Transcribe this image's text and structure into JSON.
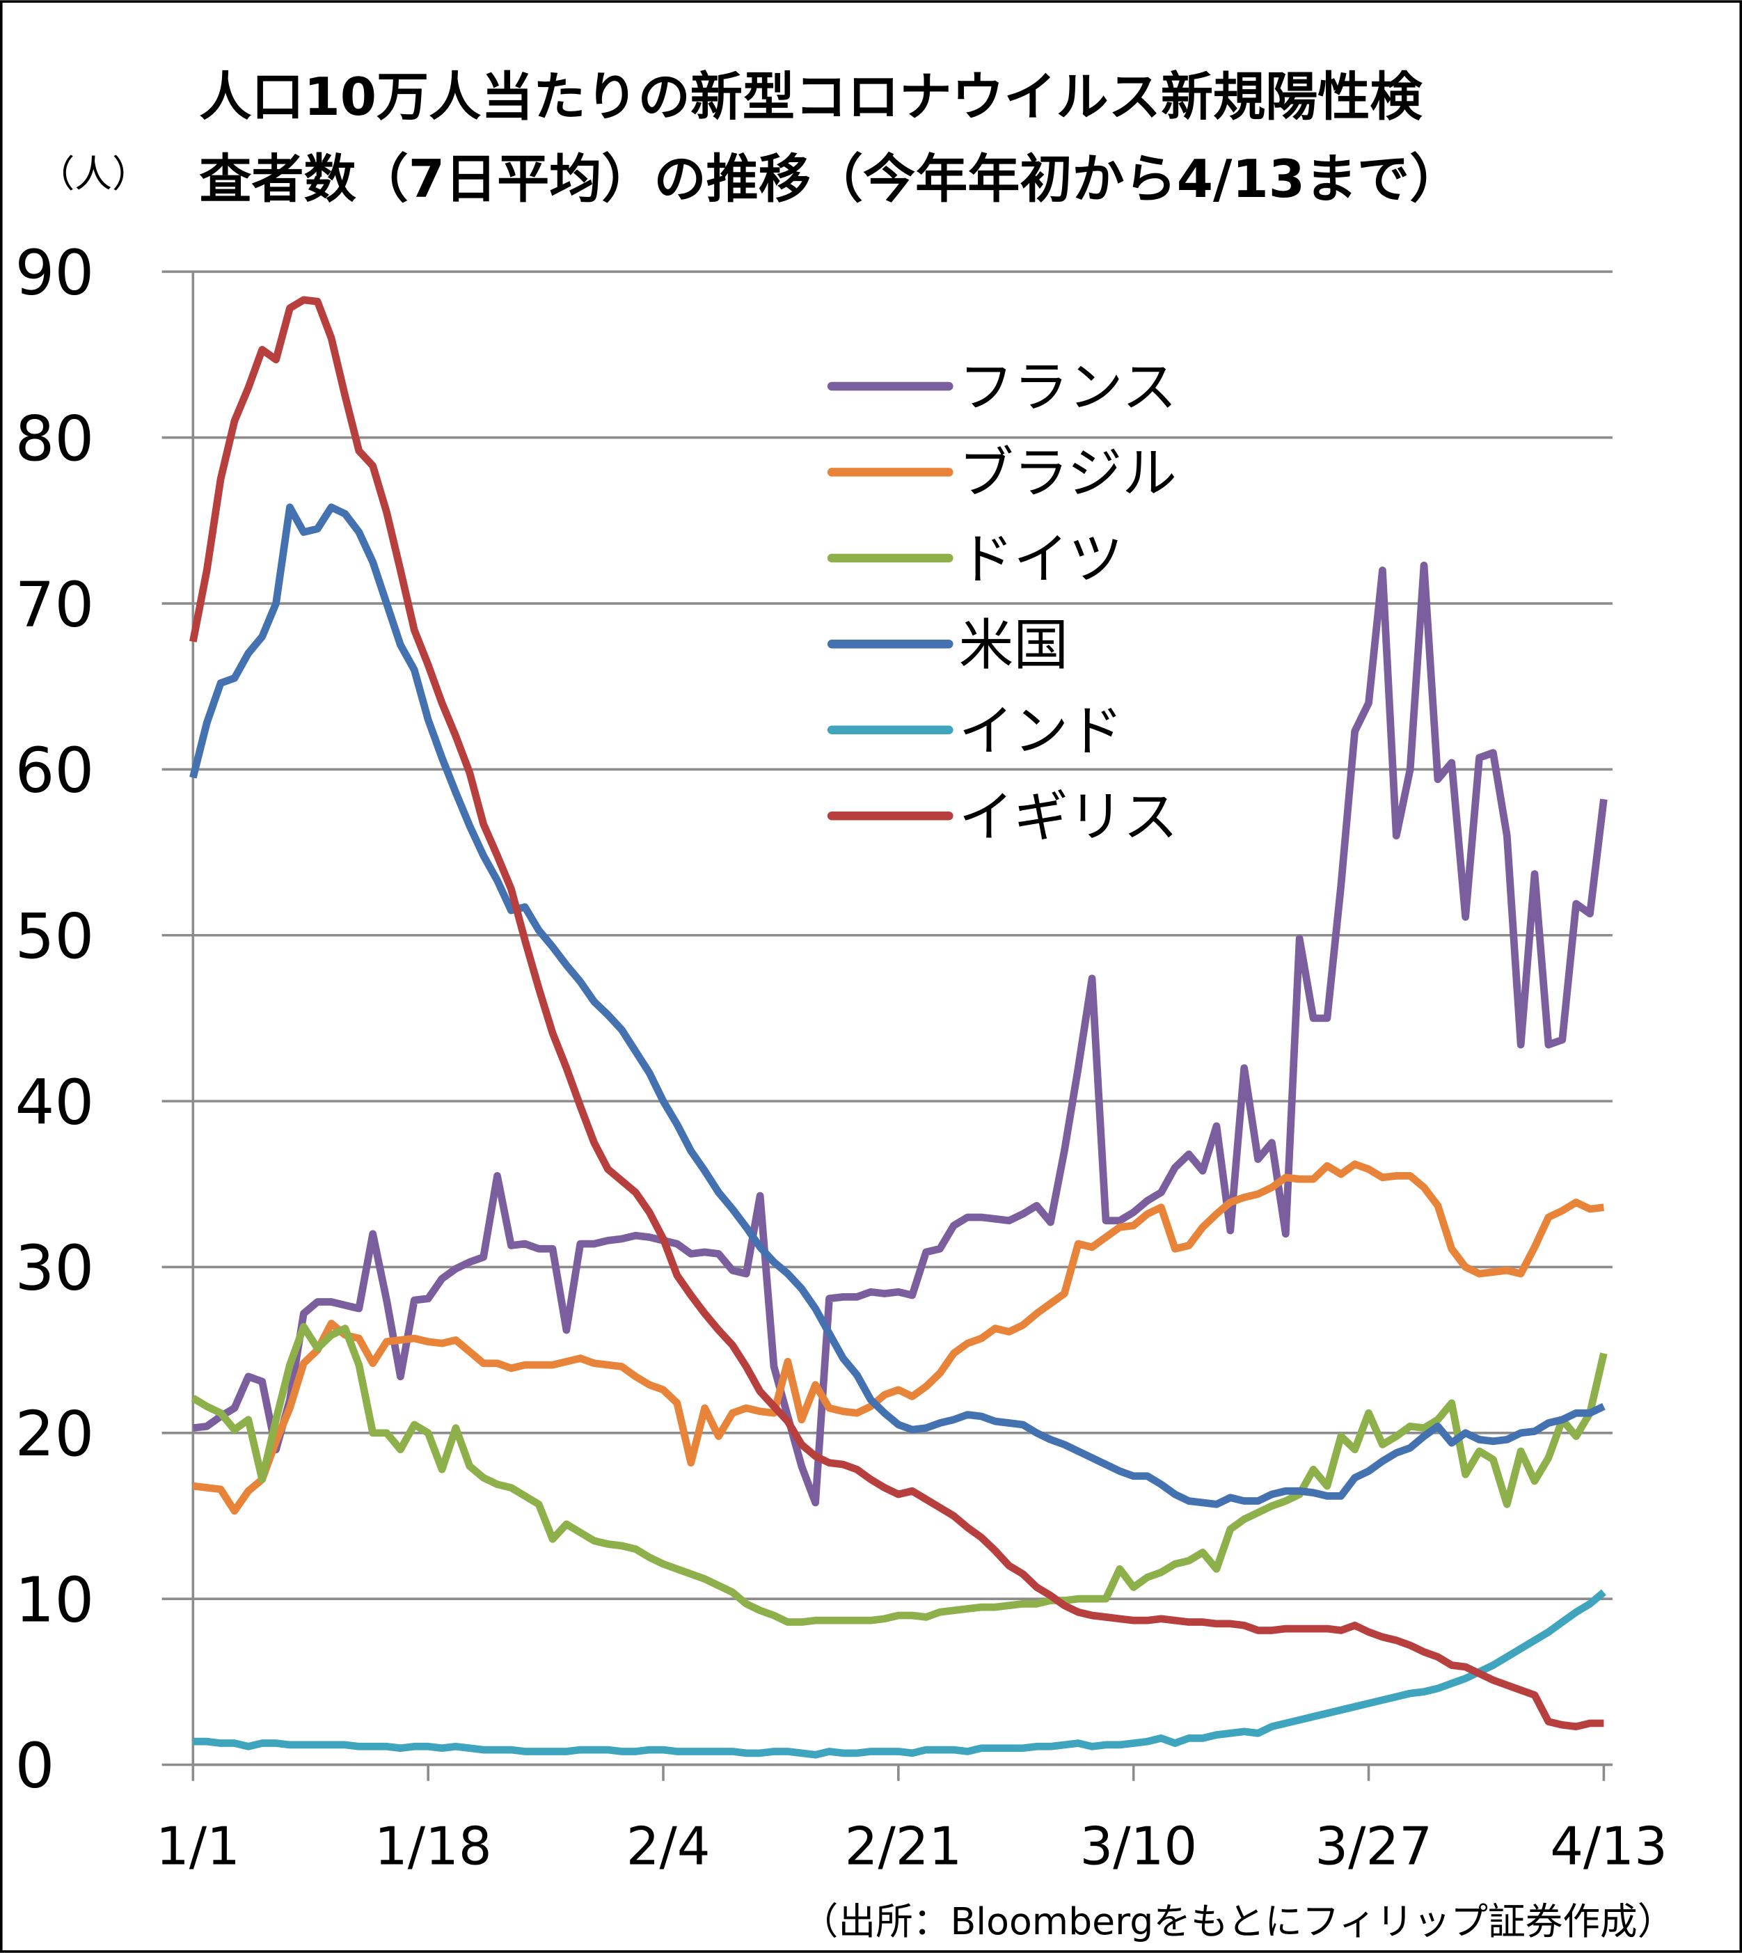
{
  "chart_data": {
    "type": "line",
    "title": [
      "人口10万人当たりの新型コロナウイルス新規陽性検",
      "査者数（7日平均）の推移（今年年初から4/13まで）"
    ],
    "y_label": "（人）",
    "source": "（出所：Bloombergをもとにフィリップ証券作成）",
    "categories": [
      "1/1",
      null,
      null,
      null,
      null,
      null,
      null,
      null,
      null,
      null,
      null,
      null,
      null,
      null,
      null,
      null,
      null,
      "1/18",
      null,
      null,
      null,
      null,
      null,
      null,
      null,
      null,
      null,
      null,
      null,
      null,
      null,
      null,
      null,
      null,
      "2/4",
      null,
      null,
      null,
      null,
      null,
      null,
      null,
      null,
      null,
      null,
      null,
      null,
      null,
      null,
      null,
      null,
      "2/21",
      null,
      null,
      null,
      null,
      null,
      null,
      null,
      null,
      null,
      null,
      null,
      null,
      null,
      null,
      null,
      null,
      "3/10",
      null,
      null,
      null,
      null,
      null,
      null,
      null,
      null,
      null,
      null,
      null,
      null,
      null,
      null,
      null,
      null,
      "3/27",
      null,
      null,
      null,
      null,
      null,
      null,
      null,
      null,
      null,
      null,
      null,
      null,
      null,
      null,
      null,
      null,
      "4/13"
    ],
    "ylim": [
      0,
      90
    ],
    "yticks": [
      0,
      10,
      20,
      30,
      40,
      50,
      60,
      70,
      80,
      90
    ],
    "grid": true,
    "series": [
      {
        "name": "フランス",
        "color": "#7b5e9e",
        "values": [
          20.3,
          20.4,
          21,
          21.5,
          23.4,
          23.1,
          19,
          22,
          27.2,
          27.9,
          27.9,
          27.7,
          27.5,
          32,
          28,
          23.4,
          28,
          28.1,
          29.3,
          29.9,
          30.3,
          30.6,
          35.5,
          31.3,
          31.4,
          31.1,
          31.1,
          26.2,
          31.4,
          31.4,
          31.6,
          31.7,
          31.9,
          31.8,
          31.6,
          31.4,
          30.8,
          30.9,
          30.8,
          29.8,
          29.6,
          34.3,
          24,
          21,
          18,
          15.8,
          28.1,
          28.2,
          28.2,
          28.5,
          28.4,
          28.5,
          28.3,
          30.9,
          31.1,
          32.5,
          33,
          33,
          32.9,
          32.8,
          33.2,
          33.7,
          32.7,
          37,
          42,
          47.4,
          32.8,
          32.8,
          33.3,
          34,
          34.5,
          36,
          36.8,
          35.8,
          38.5,
          32.2,
          42,
          36.5,
          37.5,
          32,
          49.8,
          45,
          45,
          53,
          62.3,
          64,
          72,
          56,
          60,
          72.3,
          59.4,
          60.4,
          51.1,
          60.7,
          61,
          56,
          43.4,
          53.7,
          43.4,
          43.7,
          51.9,
          51.3,
          58.2
        ]
      },
      {
        "name": "ブラジル",
        "color": "#e8843a",
        "values": [
          16.8,
          16.7,
          16.6,
          15.3,
          16.5,
          17.2,
          19.5,
          21.5,
          24.2,
          25,
          26.6,
          25.9,
          25.7,
          24.2,
          25.5,
          25.6,
          25.7,
          25.5,
          25.4,
          25.6,
          24.9,
          24.2,
          24.2,
          23.9,
          24.1,
          24.1,
          24.1,
          24.3,
          24.5,
          24.2,
          24.1,
          24,
          23.4,
          22.9,
          22.6,
          21.8,
          18.2,
          21.5,
          19.8,
          21.2,
          21.5,
          21.3,
          21.2,
          24.3,
          20.8,
          22.9,
          21.5,
          21.3,
          21.2,
          21.6,
          22.3,
          22.6,
          22.2,
          22.8,
          23.6,
          24.8,
          25.4,
          25.7,
          26.3,
          26.1,
          26.5,
          27.2,
          27.8,
          28.4,
          31.4,
          31.2,
          31.8,
          32.4,
          32.5,
          33.2,
          33.6,
          31.1,
          31.3,
          32.4,
          33.2,
          33.9,
          34.2,
          34.4,
          34.8,
          35.4,
          35.3,
          35.3,
          36.1,
          35.6,
          36.2,
          35.9,
          35.4,
          35.5,
          35.5,
          34.8,
          33.7,
          31.1,
          30,
          29.6,
          29.7,
          29.8,
          29.6,
          31.2,
          33,
          33.4,
          33.9,
          33.5,
          33.6
        ]
      },
      {
        "name": "ドイツ",
        "color": "#8db04a",
        "values": [
          22.1,
          21.6,
          21.2,
          20.2,
          20.8,
          17.2,
          20.8,
          24.1,
          26.4,
          25.1,
          25.9,
          26.3,
          24.1,
          20,
          20,
          19,
          20.5,
          20,
          17.8,
          20.3,
          18,
          17.3,
          16.9,
          16.7,
          16.2,
          15.7,
          13.6,
          14.5,
          14,
          13.5,
          13.3,
          13.2,
          13,
          12.5,
          12.1,
          11.8,
          11.5,
          11.2,
          10.8,
          10.4,
          9.7,
          9.3,
          9,
          8.6,
          8.6,
          8.7,
          8.7,
          8.7,
          8.7,
          8.7,
          8.8,
          9,
          9,
          8.9,
          9.2,
          9.3,
          9.4,
          9.5,
          9.5,
          9.6,
          9.7,
          9.7,
          9.9,
          9.9,
          10,
          10,
          10,
          11.8,
          10.7,
          11.3,
          11.6,
          12.1,
          12.3,
          12.8,
          11.8,
          14.2,
          14.8,
          15.2,
          15.6,
          15.9,
          16.3,
          17.8,
          16.8,
          19.8,
          19,
          21.2,
          19.3,
          19.8,
          20.4,
          20.3,
          20.8,
          21.8,
          17.5,
          18.9,
          18.4,
          15.7,
          18.9,
          17.1,
          18.5,
          20.8,
          19.8,
          21.2,
          24.8
        ]
      },
      {
        "name": "米国",
        "color": "#4472b0",
        "values": [
          59.5,
          62.8,
          65.2,
          65.5,
          67,
          68,
          70,
          75.8,
          74.3,
          74.5,
          75.8,
          75.4,
          74.3,
          72.5,
          70,
          67.5,
          66,
          63,
          60.7,
          58.6,
          56.6,
          54.8,
          53.3,
          51.5,
          51.7,
          50.3,
          49.3,
          48.2,
          47.2,
          46,
          45.2,
          44.3,
          43,
          41.7,
          40,
          38.6,
          37,
          35.8,
          34.5,
          33.5,
          32.4,
          31.2,
          30.3,
          29.6,
          28.7,
          27.5,
          26,
          24.5,
          23.5,
          22,
          21.2,
          20.5,
          20.2,
          20.3,
          20.6,
          20.8,
          21.1,
          21,
          20.7,
          20.6,
          20.5,
          20,
          19.6,
          19.3,
          18.9,
          18.5,
          18.1,
          17.7,
          17.4,
          17.4,
          16.9,
          16.3,
          15.9,
          15.8,
          15.7,
          16.1,
          15.9,
          15.9,
          16.3,
          16.5,
          16.5,
          16.4,
          16.2,
          16.2,
          17.3,
          17.7,
          18.3,
          18.8,
          19.1,
          19.8,
          20.4,
          19.4,
          20,
          19.6,
          19.5,
          19.6,
          20,
          20.1,
          20.6,
          20.8,
          21.2,
          21.2,
          21.6
        ]
      },
      {
        "name": "インド",
        "color": "#3fa4bd",
        "values": [
          1.4,
          1.4,
          1.3,
          1.3,
          1.1,
          1.3,
          1.3,
          1.2,
          1.2,
          1.2,
          1.2,
          1.2,
          1.1,
          1.1,
          1.1,
          1,
          1.1,
          1.1,
          1,
          1.1,
          1,
          0.9,
          0.9,
          0.9,
          0.8,
          0.8,
          0.8,
          0.8,
          0.9,
          0.9,
          0.9,
          0.8,
          0.8,
          0.9,
          0.9,
          0.8,
          0.8,
          0.8,
          0.8,
          0.8,
          0.7,
          0.7,
          0.8,
          0.8,
          0.7,
          0.6,
          0.8,
          0.7,
          0.7,
          0.8,
          0.8,
          0.8,
          0.7,
          0.9,
          0.9,
          0.9,
          0.8,
          1,
          1,
          1,
          1,
          1.1,
          1.1,
          1.2,
          1.3,
          1.1,
          1.2,
          1.2,
          1.3,
          1.4,
          1.6,
          1.3,
          1.6,
          1.6,
          1.8,
          1.9,
          2,
          1.9,
          2.3,
          2.5,
          2.7,
          2.9,
          3.1,
          3.3,
          3.5,
          3.7,
          3.9,
          4.1,
          4.3,
          4.4,
          4.6,
          4.9,
          5.2,
          5.6,
          6,
          6.5,
          7,
          7.5,
          8,
          8.6,
          9.2,
          9.7,
          10.4
        ]
      },
      {
        "name": "イギリス",
        "color": "#b7403f",
        "values": [
          67.7,
          72,
          77.5,
          81,
          83,
          85.3,
          84.7,
          87.8,
          88.3,
          88.2,
          86,
          82.5,
          79.2,
          78.3,
          75.5,
          72,
          68.4,
          66.3,
          64,
          62,
          59.8,
          56.7,
          54.8,
          52.8,
          49.7,
          46.8,
          44.1,
          42,
          39.7,
          37.5,
          35.9,
          35.2,
          34.5,
          33.3,
          31.7,
          29.5,
          28.3,
          27.2,
          26.2,
          25.3,
          24,
          22.5,
          21.6,
          20.7,
          19.3,
          18.6,
          18.2,
          18.1,
          17.8,
          17.2,
          16.7,
          16.3,
          16.5,
          16,
          15.5,
          15,
          14.3,
          13.7,
          12.9,
          12,
          11.5,
          10.7,
          10.2,
          9.6,
          9.2,
          9,
          8.9,
          8.8,
          8.7,
          8.7,
          8.8,
          8.7,
          8.6,
          8.6,
          8.5,
          8.5,
          8.4,
          8.1,
          8.1,
          8.2,
          8.2,
          8.2,
          8.2,
          8.1,
          8.4,
          8,
          7.7,
          7.5,
          7.2,
          6.8,
          6.5,
          6,
          5.9,
          5.5,
          5.1,
          4.8,
          4.5,
          4.2,
          2.6,
          2.4,
          2.3,
          2.5,
          2.5
        ]
      }
    ]
  }
}
